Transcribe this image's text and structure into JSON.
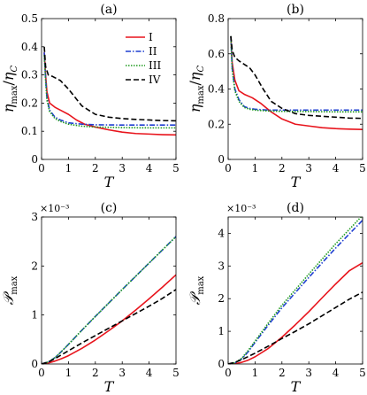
{
  "legend": [
    {
      "label": "I",
      "color": "#e8141c",
      "dash": ""
    },
    {
      "label": "II",
      "color": "#1f3fd1",
      "dash": "6,2,1.5,2"
    },
    {
      "label": "III",
      "color": "#1e9a1e",
      "dash": "1.5,1.5"
    },
    {
      "label": "IV",
      "color": "#000000",
      "dash": "6,3"
    }
  ],
  "chart_data": [
    {
      "type": "line",
      "title": "(a)",
      "xlabel": "T",
      "ylabel": "ηmax/ηC",
      "ylabel_parts": {
        "eta": "η",
        "max": "max",
        "slash": "/",
        "eta2": "η",
        "sub": "C"
      },
      "xlim": [
        0,
        5
      ],
      "ylim": [
        0,
        0.5
      ],
      "xticks": [
        0,
        1,
        2,
        3,
        4,
        5
      ],
      "yticks": [
        0,
        0.1,
        0.2,
        0.3,
        0.4,
        0.5
      ],
      "ytick_labels": [
        "0",
        "0.1",
        "0.2",
        "0.3",
        "0.4",
        "0.5"
      ],
      "multiplier": "",
      "legend_position": "top-right",
      "series": [
        {
          "name": "I",
          "x": [
            0.1,
            0.15,
            0.2,
            0.3,
            0.5,
            0.8,
            1.0,
            1.3,
            1.6,
            2.0,
            2.5,
            3.0,
            3.5,
            4.0,
            4.5,
            5.0
          ],
          "y": [
            0.38,
            0.3,
            0.24,
            0.2,
            0.185,
            0.17,
            0.16,
            0.14,
            0.125,
            0.115,
            0.105,
            0.097,
            0.092,
            0.09,
            0.088,
            0.087
          ]
        },
        {
          "name": "II",
          "x": [
            0.1,
            0.15,
            0.2,
            0.3,
            0.5,
            0.7,
            1.0,
            1.5,
            2.0,
            3.0,
            4.0,
            5.0
          ],
          "y": [
            0.38,
            0.29,
            0.22,
            0.175,
            0.15,
            0.14,
            0.13,
            0.125,
            0.123,
            0.122,
            0.122,
            0.122
          ]
        },
        {
          "name": "III",
          "x": [
            0.1,
            0.15,
            0.2,
            0.3,
            0.5,
            0.7,
            1.0,
            1.5,
            2.0,
            3.0,
            4.0,
            5.0
          ],
          "y": [
            0.37,
            0.28,
            0.21,
            0.17,
            0.145,
            0.135,
            0.125,
            0.118,
            0.115,
            0.113,
            0.112,
            0.112
          ]
        },
        {
          "name": "IV",
          "x": [
            0.1,
            0.15,
            0.25,
            0.4,
            0.7,
            1.0,
            1.5,
            2.0,
            2.5,
            3.0,
            3.5,
            4.0,
            4.5,
            5.0
          ],
          "y": [
            0.4,
            0.33,
            0.3,
            0.295,
            0.28,
            0.25,
            0.19,
            0.16,
            0.15,
            0.145,
            0.142,
            0.14,
            0.138,
            0.137
          ]
        }
      ]
    },
    {
      "type": "line",
      "title": "(b)",
      "xlabel": "T",
      "ylabel": "ηmax/ηC",
      "ylabel_parts": {
        "eta": "η",
        "max": "max",
        "slash": "/",
        "eta2": "η",
        "sub": "C"
      },
      "xlim": [
        0,
        5
      ],
      "ylim": [
        0,
        0.8
      ],
      "xticks": [
        0,
        1,
        2,
        3,
        4,
        5
      ],
      "yticks": [
        0,
        0.2,
        0.4,
        0.6,
        0.8
      ],
      "ytick_labels": [
        "0",
        "0.2",
        "0.4",
        "0.6",
        "0.8"
      ],
      "multiplier": "",
      "series": [
        {
          "name": "I",
          "x": [
            0.1,
            0.15,
            0.25,
            0.4,
            0.6,
            0.9,
            1.2,
            1.6,
            2.0,
            2.5,
            3.0,
            3.5,
            4.0,
            4.5,
            5.0
          ],
          "y": [
            0.7,
            0.55,
            0.45,
            0.39,
            0.37,
            0.35,
            0.32,
            0.27,
            0.23,
            0.2,
            0.19,
            0.18,
            0.175,
            0.172,
            0.17
          ]
        },
        {
          "name": "II",
          "x": [
            0.1,
            0.15,
            0.25,
            0.4,
            0.6,
            0.8,
            1.0,
            1.5,
            2.0,
            3.0,
            4.0,
            5.0
          ],
          "y": [
            0.7,
            0.52,
            0.4,
            0.34,
            0.3,
            0.29,
            0.285,
            0.28,
            0.28,
            0.28,
            0.28,
            0.28
          ]
        },
        {
          "name": "III",
          "x": [
            0.1,
            0.15,
            0.25,
            0.4,
            0.6,
            0.8,
            1.0,
            1.5,
            2.0,
            3.0,
            4.0,
            5.0
          ],
          "y": [
            0.7,
            0.51,
            0.39,
            0.33,
            0.295,
            0.285,
            0.28,
            0.275,
            0.273,
            0.272,
            0.27,
            0.27
          ]
        },
        {
          "name": "IV",
          "x": [
            0.1,
            0.15,
            0.25,
            0.4,
            0.6,
            0.8,
            1.0,
            1.3,
            1.6,
            2.0,
            2.5,
            3.0,
            3.5,
            4.0,
            4.5,
            5.0
          ],
          "y": [
            0.7,
            0.62,
            0.58,
            0.56,
            0.54,
            0.52,
            0.48,
            0.4,
            0.33,
            0.29,
            0.26,
            0.25,
            0.245,
            0.24,
            0.235,
            0.233
          ]
        }
      ]
    },
    {
      "type": "line",
      "title": "(c)",
      "xlabel": "T",
      "ylabel": "Pmax",
      "ylabel_parts": {
        "main": "𝒫",
        "sub": "max"
      },
      "xlim": [
        0,
        5
      ],
      "ylim": [
        0,
        3
      ],
      "xticks": [
        0,
        1,
        2,
        3,
        4,
        5
      ],
      "yticks": [
        0,
        1,
        2,
        3
      ],
      "ytick_labels": [
        "0",
        "1",
        "2",
        "3"
      ],
      "multiplier": "×10⁻³",
      "series": [
        {
          "name": "I",
          "x": [
            0,
            0.25,
            0.5,
            0.75,
            1,
            1.5,
            2,
            2.5,
            3,
            3.5,
            4,
            4.5,
            5
          ],
          "y": [
            0,
            0.02,
            0.06,
            0.11,
            0.17,
            0.32,
            0.49,
            0.68,
            0.88,
            1.1,
            1.33,
            1.57,
            1.82
          ]
        },
        {
          "name": "II",
          "x": [
            0,
            0.25,
            0.5,
            0.75,
            1,
            1.5,
            2,
            3,
            4,
            5
          ],
          "y": [
            0,
            0.04,
            0.13,
            0.26,
            0.4,
            0.69,
            0.97,
            1.52,
            2.06,
            2.6
          ]
        },
        {
          "name": "III",
          "x": [
            0,
            0.25,
            0.5,
            0.75,
            1,
            1.5,
            2,
            3,
            4,
            5
          ],
          "y": [
            0,
            0.04,
            0.13,
            0.26,
            0.4,
            0.69,
            0.97,
            1.52,
            2.06,
            2.6
          ]
        },
        {
          "name": "IV",
          "x": [
            0,
            0.25,
            0.5,
            0.75,
            1,
            1.5,
            2,
            2.5,
            3,
            3.5,
            4,
            4.5,
            5
          ],
          "y": [
            0,
            0.04,
            0.11,
            0.19,
            0.27,
            0.43,
            0.58,
            0.73,
            0.88,
            1.03,
            1.18,
            1.34,
            1.52
          ]
        }
      ]
    },
    {
      "type": "line",
      "title": "(d)",
      "xlabel": "T",
      "ylabel": "Pmax",
      "ylabel_parts": {
        "main": "𝒫",
        "sub": "max"
      },
      "xlim": [
        0,
        5
      ],
      "ylim": [
        0,
        4.5
      ],
      "xticks": [
        0,
        1,
        2,
        3,
        4,
        5
      ],
      "yticks": [
        0,
        1,
        2,
        3,
        4
      ],
      "ytick_labels": [
        "0",
        "1",
        "2",
        "3",
        "4"
      ],
      "multiplier": "×10⁻³",
      "series": [
        {
          "name": "I",
          "x": [
            0,
            0.25,
            0.5,
            0.75,
            1,
            1.5,
            2,
            2.5,
            3,
            3.5,
            4,
            4.5,
            5
          ],
          "y": [
            0,
            0.01,
            0.05,
            0.12,
            0.22,
            0.48,
            0.82,
            1.2,
            1.6,
            2.03,
            2.45,
            2.85,
            3.1
          ]
        },
        {
          "name": "II",
          "x": [
            0,
            0.25,
            0.5,
            0.75,
            1,
            1.5,
            2,
            3,
            4,
            5
          ],
          "y": [
            0,
            0.03,
            0.15,
            0.38,
            0.66,
            1.2,
            1.72,
            2.65,
            3.55,
            4.4
          ]
        },
        {
          "name": "III",
          "x": [
            0,
            0.25,
            0.5,
            0.75,
            1,
            1.5,
            2,
            3,
            4,
            5
          ],
          "y": [
            0,
            0.04,
            0.17,
            0.42,
            0.7,
            1.26,
            1.8,
            2.75,
            3.68,
            4.55
          ]
        },
        {
          "name": "IV",
          "x": [
            0,
            0.25,
            0.5,
            0.75,
            1,
            1.5,
            2,
            2.5,
            3,
            3.5,
            4,
            4.5,
            5
          ],
          "y": [
            0,
            0.05,
            0.13,
            0.23,
            0.33,
            0.55,
            0.78,
            1.0,
            1.23,
            1.48,
            1.73,
            1.98,
            2.2
          ]
        }
      ]
    }
  ]
}
